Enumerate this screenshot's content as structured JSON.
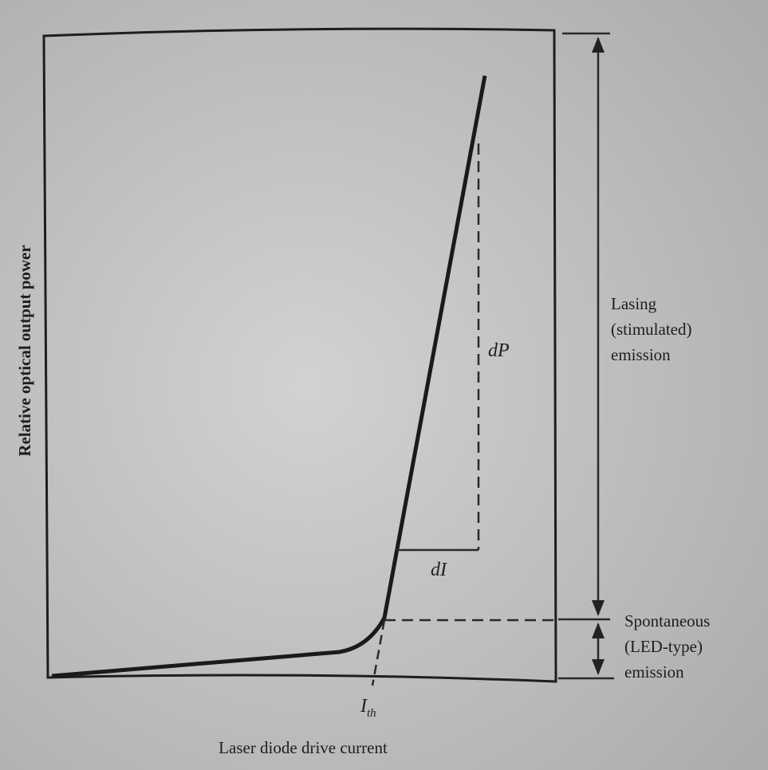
{
  "axes": {
    "y_label": "Relative optical output power",
    "x_label": "Laser diode drive current"
  },
  "threshold": {
    "symbol": "I",
    "subscript": "th"
  },
  "slope": {
    "dP": "dP",
    "dI": "dI"
  },
  "regions": {
    "lasing": [
      "Lasing",
      "(stimulated)",
      "emission"
    ],
    "spontaneous": [
      "Spontaneous",
      "(LED-type)",
      "emission"
    ]
  }
}
